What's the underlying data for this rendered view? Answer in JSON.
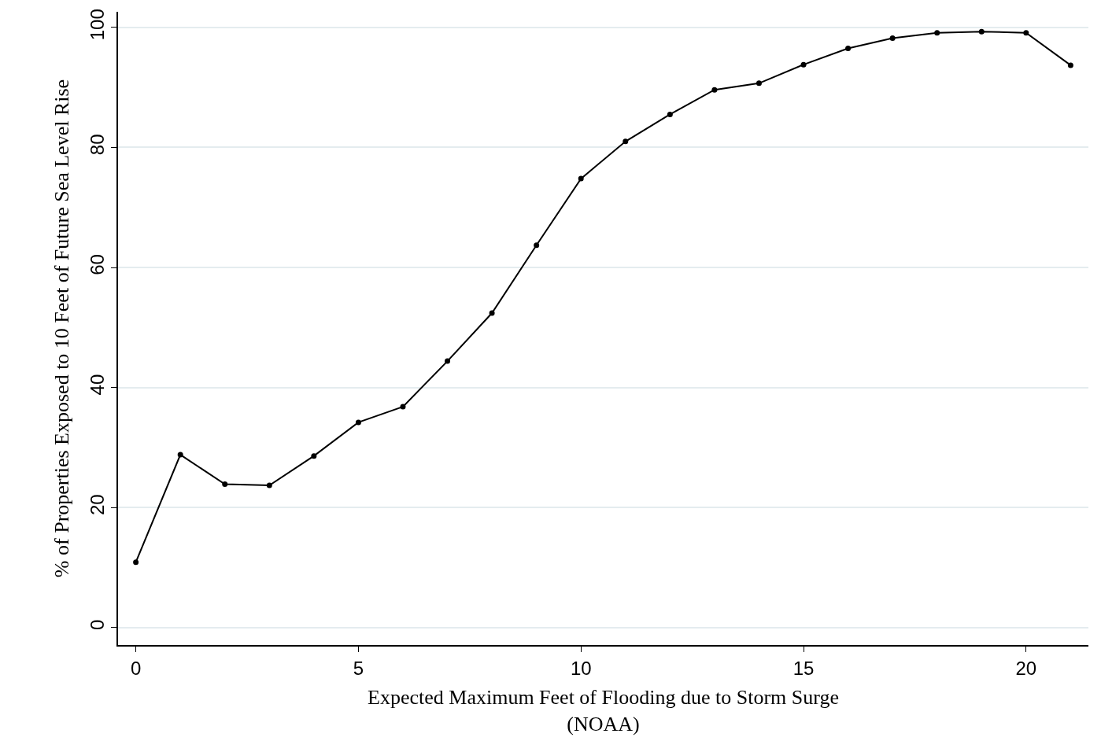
{
  "chart_data": {
    "type": "line",
    "xlabel": "Expected Maximum Feet of Flooding due to Storm Surge\n(NOAA)",
    "ylabel": "% of Properties Exposed to 10 Feet of Future Sea Level Rise",
    "x": [
      0,
      1,
      2,
      3,
      4,
      5,
      6,
      7,
      8,
      9,
      10,
      11,
      12,
      13,
      14,
      15,
      16,
      17,
      18,
      19,
      20,
      21
    ],
    "series": [
      {
        "color": "#000000",
        "values": [
          10.9,
          28.8,
          23.9,
          23.7,
          28.6,
          34.2,
          36.8,
          44.4,
          52.4,
          63.7,
          74.8,
          81.0,
          85.5,
          89.6,
          90.7,
          93.8,
          96.5,
          98.2,
          99.1,
          99.3,
          99.1,
          93.7
        ]
      }
    ],
    "xlim": [
      -0.4,
      21.4
    ],
    "ylim": [
      -2.9,
      102.6
    ],
    "xticks": [
      0,
      5,
      10,
      15,
      20
    ],
    "yticks": [
      0,
      20,
      40,
      60,
      80,
      100
    ],
    "grid": "y",
    "marker": "circle",
    "line_style": "solid"
  }
}
